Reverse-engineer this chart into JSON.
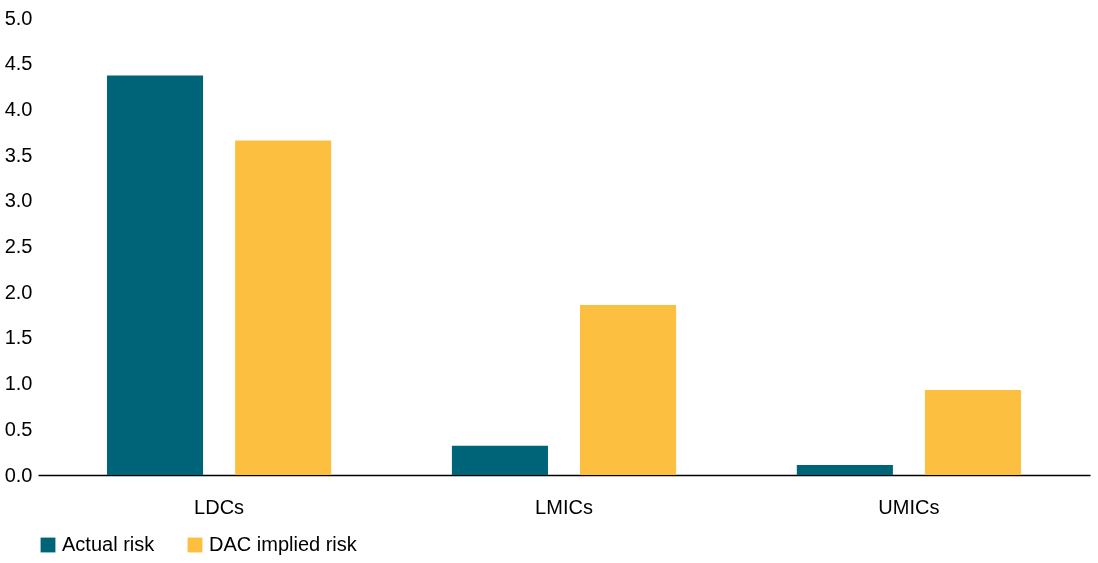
{
  "chart_data": {
    "type": "bar",
    "categories": [
      "LDCs",
      "LMICs",
      "UMICs"
    ],
    "series": [
      {
        "name": "Actual risk",
        "color": "#006478",
        "values": [
          4.37,
          0.32,
          0.11
        ]
      },
      {
        "name": "DAC implied risk",
        "color": "#fdbf3f",
        "values": [
          3.66,
          1.86,
          0.93
        ]
      }
    ],
    "ylim": [
      0,
      5
    ],
    "yticks": [
      {
        "value": 0,
        "label": "0.0"
      },
      {
        "value": 0.5,
        "label": "0.5"
      },
      {
        "value": 1,
        "label": "1.0"
      },
      {
        "value": 1.5,
        "label": "1.5"
      },
      {
        "value": 2,
        "label": "2.0"
      },
      {
        "value": 2.5,
        "label": "2.5"
      },
      {
        "value": 3,
        "label": "3.0"
      },
      {
        "value": 3.5,
        "label": "3.5"
      },
      {
        "value": 4,
        "label": "4.0"
      },
      {
        "value": 4.5,
        "label": "4.5"
      },
      {
        "value": 5,
        "label": "5.0"
      }
    ],
    "grid": false,
    "legend": "bottom"
  }
}
